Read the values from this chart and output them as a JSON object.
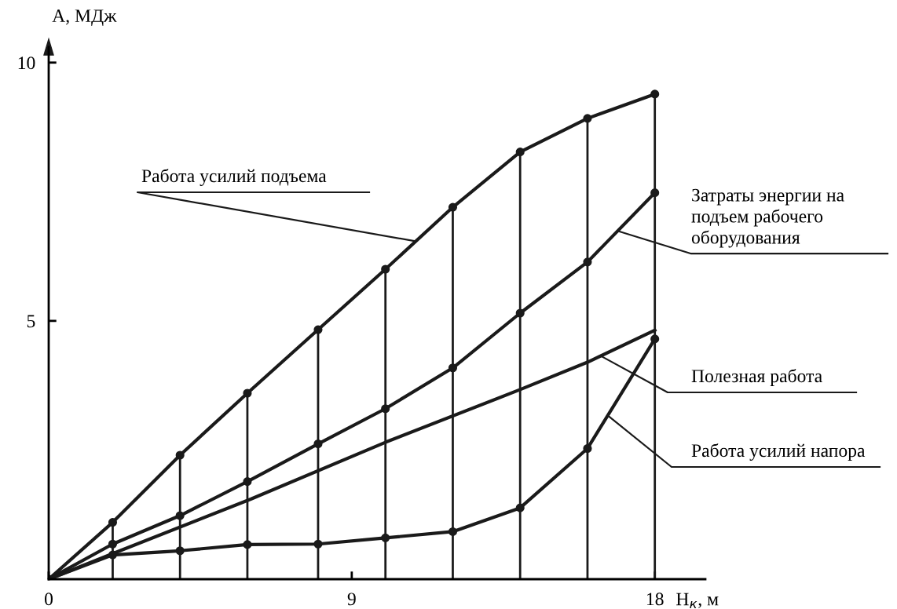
{
  "chart_data": {
    "type": "line",
    "xlabel": "H$_{к}$, м",
    "ylabel": "A, МДж",
    "xlim": [
      0,
      19.5
    ],
    "ylim": [
      0,
      10.3
    ],
    "xticks": [
      0,
      9,
      18
    ],
    "yticks": [
      5,
      10
    ],
    "grid": false,
    "marker": "circle",
    "line_style": "solid",
    "series": [
      {
        "color": "#1a1a1a",
        "x": [
          0,
          1.9,
          3.9,
          5.9,
          8,
          10,
          12,
          14,
          16,
          18
        ],
        "values": [
          0,
          1.1,
          2.4,
          3.6,
          4.83,
          6.0,
          7.2,
          8.27,
          8.92,
          9.39
        ]
      },
      {
        "color": "#1a1a1a",
        "x": [
          0,
          1.9,
          3.9,
          5.9,
          8,
          10,
          12,
          14,
          16,
          18
        ],
        "values": [
          0,
          0.68,
          1.23,
          1.89,
          2.62,
          3.3,
          4.09,
          5.15,
          6.14,
          7.48
        ]
      },
      {
        "color": "#1a1a1a",
        "marker": "none",
        "x": [
          0,
          2,
          6,
          10,
          14,
          16,
          18
        ],
        "values": [
          0,
          0.52,
          1.55,
          2.65,
          3.67,
          4.2,
          4.82
        ]
      },
      {
        "color": "#1a1a1a",
        "x": [
          0,
          1.9,
          3.9,
          5.9,
          8,
          10,
          12,
          14,
          16,
          18
        ],
        "values": [
          0,
          0.47,
          0.55,
          0.67,
          0.68,
          0.8,
          0.92,
          1.38,
          2.53,
          4.65
        ]
      }
    ],
    "ref_lines": [
      {
        "axis": "x",
        "value": 1.9
      },
      {
        "axis": "x",
        "value": 3.9
      },
      {
        "axis": "x",
        "value": 5.9
      },
      {
        "axis": "x",
        "value": 8
      },
      {
        "axis": "x",
        "value": 10
      },
      {
        "axis": "x",
        "value": 12
      },
      {
        "axis": "x",
        "value": 14
      },
      {
        "axis": "x",
        "value": 16
      },
      {
        "axis": "x",
        "value": 18
      }
    ],
    "annotations": [
      {
        "text": "Работа усилий подъема",
        "x": 10.9,
        "y": 6.54
      },
      {
        "text": "Затраты энергии на\nподъем рабочего\nоборудования",
        "x": 16.9,
        "y": 6.74
      },
      {
        "text": "Полезная работа",
        "x": 16.4,
        "y": 4.32
      },
      {
        "text": "Работа усилий напора",
        "x": 16.6,
        "y": 3.17
      }
    ]
  }
}
